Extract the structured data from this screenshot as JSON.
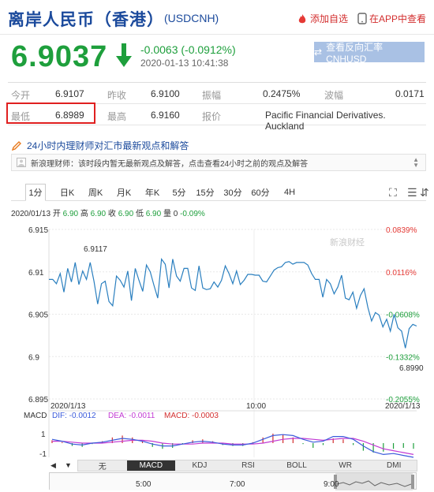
{
  "header": {
    "title": "离岸人民币（香港）",
    "code": "(USDCNH)",
    "add_fav": "添加自选",
    "in_app": "在APP中查看"
  },
  "quote": {
    "price": "6.9037",
    "change": "-0.0063 (-0.0912%)",
    "timestamp": "2020-01-13 10:41:38",
    "reverse_button": "查看反向汇率 CNHUSD"
  },
  "stats": {
    "open_label": "今开",
    "open": "6.9107",
    "prev_label": "昨收",
    "prev": "6.9100",
    "amp_label": "振幅",
    "amp": "0.2475%",
    "wave_label": "波幅",
    "wave": "0.0171",
    "low_label": "最低",
    "low": "6.8989",
    "high_label": "最高",
    "high": "6.9160",
    "quote_label": "报价",
    "quote_src": "Pacific Financial Derivatives. Auckland"
  },
  "expert": {
    "ask": "24小时内理财师对汇市最新观点和解答",
    "notice": "新浪理财师：该时段内暂无最新观点及解答，点击查看24小时之前的观点及解答"
  },
  "tabs": [
    "1分",
    "日K",
    "周K",
    "月K",
    "年K",
    "5分",
    "15分",
    "30分",
    "60分",
    "4H"
  ],
  "ohlc": {
    "date": "2020/01/13",
    "open_label": "开",
    "open": "6.90",
    "high_label": "高",
    "high": "6.90",
    "close_label": "收",
    "close": "6.90",
    "low_label": "低",
    "low": "6.90",
    "vol_label": "量",
    "vol": "0",
    "change": "-0.09%"
  },
  "chart_labels": {
    "y_left": [
      "6.915",
      "6.91",
      "6.905",
      "6.9",
      "6.895"
    ],
    "y_right": [
      "0.0839%",
      "0.0116%",
      "-0.0608%",
      "-0.1332%",
      "-0.2055%"
    ],
    "x": [
      "2020/1/13",
      "10:00",
      "2020/1/13"
    ],
    "max_label": "6.9117",
    "min_label": "6.8990",
    "watermark": "新浪财经",
    "macd_label": "MACD",
    "dif": "DIF: -0.0012",
    "dea": "DEA: -0.0011",
    "macd": "MACD: -0.0003",
    "macd_ticks": [
      "1",
      "-1"
    ]
  },
  "colors": {
    "up": "#d32f2f",
    "down": "#1e9f3c",
    "line": "#2a7fbf",
    "dif": "#3b5bdb",
    "dea": "#c23bd4",
    "macd_label": "#d32f2f"
  },
  "macd_tabs": [
    "无",
    "MACD",
    "KDJ",
    "RSI",
    "BOLL",
    "WR",
    "DMI"
  ],
  "slider_labels": [
    "5:00",
    "7:00",
    "9:00"
  ],
  "chart_data": {
    "type": "line",
    "series": [
      {
        "values": [
          6.9091,
          6.9091,
          6.9086,
          6.9098,
          6.9076,
          6.9104,
          6.9088,
          6.9111,
          6.9085,
          6.9101,
          6.9091,
          6.9111,
          6.9089,
          6.9062,
          6.9086,
          6.9089,
          6.9065,
          6.906,
          6.9095,
          6.909,
          6.9082,
          6.9101,
          6.9066,
          6.9104,
          6.909,
          6.9077,
          6.9108,
          6.91,
          6.9084,
          6.9069,
          6.9115,
          6.9109,
          6.9081,
          6.9115,
          6.9095,
          6.9089,
          6.9104,
          6.9104,
          6.9081,
          6.9078,
          6.9107,
          6.9081,
          6.9079,
          6.908,
          6.9088,
          6.9082,
          6.909,
          6.9107,
          6.9098,
          6.9086,
          6.9101,
          6.9085,
          6.909,
          6.9097,
          6.9097,
          6.9096,
          6.9096,
          6.9089,
          6.9088,
          6.9095,
          6.9102,
          6.9105,
          6.9106,
          6.9111,
          6.9112,
          6.9109,
          6.9111,
          6.9111,
          6.9111,
          6.9108,
          6.9098,
          6.9091,
          6.9091,
          6.907,
          6.9091,
          6.9086,
          6.9074,
          6.9082,
          6.9096,
          6.9069,
          6.9067,
          6.9076,
          6.9057,
          6.9072,
          6.908,
          6.9058,
          6.9042,
          6.9052,
          6.9049,
          6.9035,
          6.9044,
          6.903,
          6.905,
          6.9034,
          6.903,
          6.901,
          6.9033,
          6.9038,
          6.9036
        ]
      }
    ],
    "ylim": [
      6.895,
      6.915
    ],
    "xlabel": "",
    "ylabel": ""
  },
  "macd_data": {
    "dif": [
      0.4,
      0.2,
      -0.1,
      -0.2,
      0.0,
      0.1,
      0.3,
      0.5,
      0.4,
      0.2,
      -0.1,
      -0.3,
      -0.3,
      -0.1,
      0.1,
      0.2,
      0.1,
      -0.1,
      -0.2,
      -0.2,
      0.0,
      0.4,
      0.8,
      0.9,
      0.8,
      0.4,
      0.1,
      0.2,
      0.7,
      0.7,
      0.4,
      -0.3,
      -0.9,
      -1.2,
      -1.1,
      -1.3,
      -1.5
    ],
    "dea": [
      0.2,
      0.2,
      0.1,
      0.0,
      0.0,
      0.0,
      0.1,
      0.2,
      0.3,
      0.3,
      0.2,
      0.0,
      -0.1,
      -0.1,
      -0.1,
      0.0,
      0.0,
      0.0,
      -0.1,
      -0.1,
      -0.1,
      0.0,
      0.2,
      0.4,
      0.5,
      0.5,
      0.4,
      0.3,
      0.4,
      0.5,
      0.5,
      0.2,
      -0.2,
      -0.6,
      -0.8,
      -1.0,
      -1.2
    ],
    "bars": [
      0.3,
      0.1,
      -0.3,
      -0.4,
      -0.1,
      0.2,
      0.6,
      0.8,
      0.6,
      0.2,
      -0.4,
      -0.6,
      -0.5,
      -0.1,
      0.3,
      0.4,
      0.2,
      -0.2,
      -0.3,
      -0.3,
      0.1,
      0.6,
      1.0,
      0.9,
      0.6,
      -0.1,
      -0.5,
      -0.2,
      0.5,
      0.4,
      -0.2,
      -0.8,
      -1.0,
      -0.9,
      -0.6,
      -0.5,
      -0.6
    ]
  }
}
